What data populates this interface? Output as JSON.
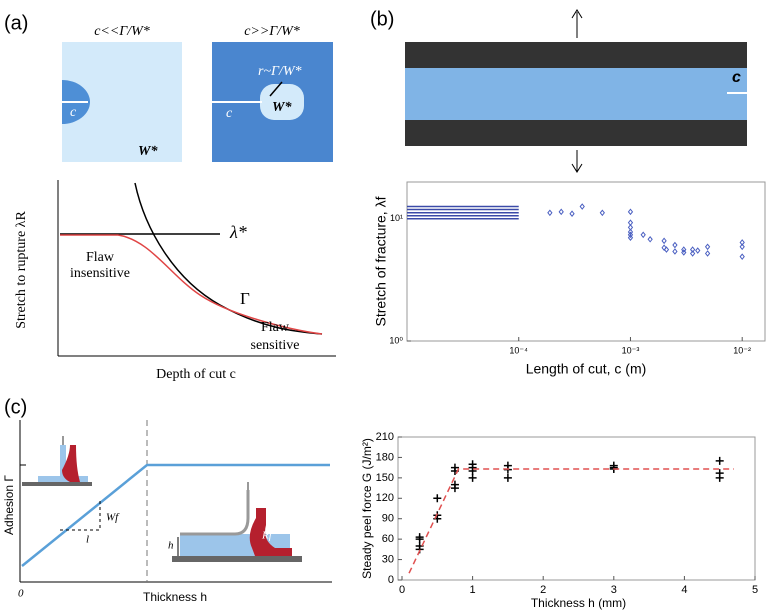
{
  "panel_labels": [
    "(a)",
    "(b)",
    "(c)"
  ],
  "schematics": {
    "a_left_title": "c<<Γ/W*",
    "a_right_title": "c>>Γ/W*",
    "a_left_c": "c",
    "a_left_w": "W*",
    "a_right_r": "r~Γ/W*",
    "a_right_c": "c",
    "a_right_w": "W*",
    "a_ylabel": "Stretch to rupture λR",
    "a_xlabel": "Depth of cut c",
    "a_lambda": "λ*",
    "a_insensitive": [
      "Flaw",
      "insensitive"
    ],
    "a_gamma": "Γ",
    "a_sensitive": [
      "Flaw",
      "sensitive"
    ],
    "b_c": "c",
    "c_ylabel": "Adhesion Γ",
    "c_xlabel": "Thickness h",
    "c_zero": "0",
    "c_wf": "Wf",
    "c_l": "l",
    "c_h": "h",
    "c_rf": "Rf"
  },
  "chart_data": [
    {
      "type": "scatter",
      "ylabel": "Stretch of fracture, λf",
      "xlabel": "Length of cut, c (m)",
      "log_x": true,
      "log_y": true,
      "xlim": [
        1e-05,
        0.016
      ],
      "ylim": [
        1,
        20
      ],
      "xticks": [
        {
          "value": 0.0001,
          "label": "10⁻⁴"
        },
        {
          "value": 0.001,
          "label": "10⁻³"
        },
        {
          "value": 0.01,
          "label": "10⁻²"
        }
      ],
      "yticks": [
        {
          "value": 1,
          "label": "10⁰"
        },
        {
          "value": 10,
          "label": "10¹"
        }
      ],
      "series": [
        {
          "kind": "segments",
          "color": "#3b4aa8",
          "x_end": 0.0001,
          "values": [
            12.6,
            11.9,
            11.2,
            10.6,
            10.0
          ]
        },
        {
          "kind": "points",
          "marker": "diamond",
          "color": "#4a5fc1",
          "x": [
            0.00019,
            0.00024,
            0.0003,
            0.00037,
            0.00056,
            0.001,
            0.001,
            0.001,
            0.001,
            0.001,
            0.001,
            0.0013,
            0.0015,
            0.002,
            0.002,
            0.0021,
            0.0025,
            0.0025,
            0.003,
            0.003,
            0.0036,
            0.0036,
            0.004,
            0.0049,
            0.0049,
            0.01,
            0.01,
            0.01
          ],
          "values": [
            11.2,
            11.4,
            11.0,
            12.6,
            11.2,
            11.4,
            9.3,
            8.5,
            7.8,
            7.4,
            7.0,
            7.4,
            6.8,
            6.6,
            5.8,
            5.6,
            6.1,
            5.4,
            5.6,
            5.3,
            5.6,
            5.2,
            5.5,
            5.9,
            5.2,
            6.4,
            5.9,
            4.9
          ]
        }
      ]
    },
    {
      "type": "scatter",
      "ylabel": "Steady peel force G (J/m²)",
      "xlabel": "Thickness h (mm)",
      "xlim": [
        0,
        5
      ],
      "ylim": [
        0,
        210
      ],
      "xticks": [
        0,
        1,
        2,
        3,
        4,
        5
      ],
      "yticks": [
        0,
        30,
        60,
        90,
        120,
        150,
        180,
        210
      ],
      "series": [
        {
          "kind": "points",
          "marker": "plus",
          "color": "#000000",
          "x": [
            0.25,
            0.25,
            0.25,
            0.25,
            0.5,
            0.5,
            0.5,
            0.75,
            0.75,
            0.75,
            0.75,
            1,
            1,
            1,
            1,
            1.5,
            1.5,
            1.5,
            3,
            3,
            3,
            4.5,
            4.5,
            4.5
          ],
          "values": [
            45,
            50,
            60,
            63,
            90,
            95,
            120,
            135,
            140,
            160,
            165,
            150,
            160,
            165,
            170,
            150,
            162,
            168,
            163,
            165,
            168,
            150,
            157,
            175
          ]
        },
        {
          "kind": "line",
          "dashed": true,
          "color": "#e05050",
          "x": [
            0.1,
            0.8,
            4.7
          ],
          "values": [
            10,
            163,
            163
          ]
        }
      ]
    }
  ]
}
